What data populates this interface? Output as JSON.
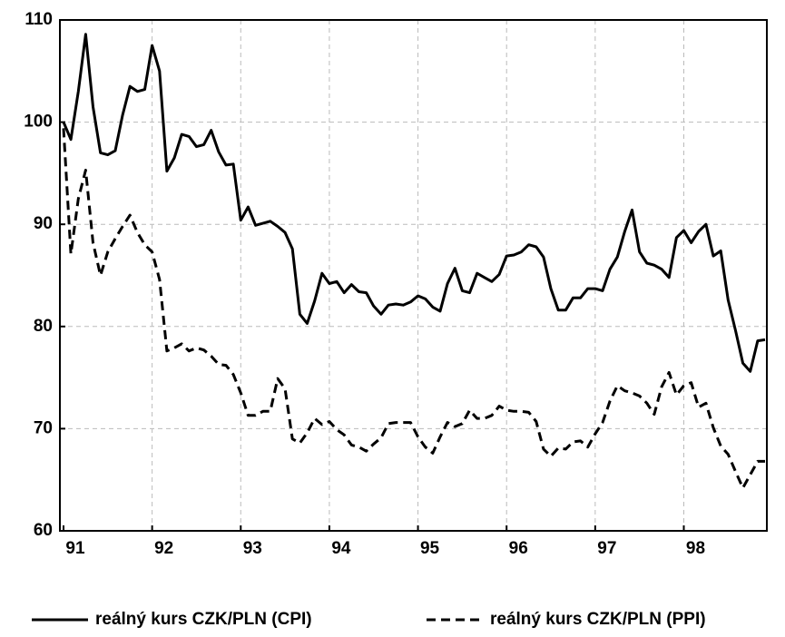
{
  "chart_data": {
    "type": "line",
    "categories": [
      "91",
      null,
      null,
      null,
      null,
      null,
      null,
      null,
      null,
      null,
      null,
      null,
      "92",
      null,
      null,
      null,
      null,
      null,
      null,
      null,
      null,
      null,
      null,
      null,
      "93",
      null,
      null,
      null,
      null,
      null,
      null,
      null,
      null,
      null,
      null,
      null,
      "94",
      null,
      null,
      null,
      null,
      null,
      null,
      null,
      null,
      null,
      null,
      null,
      "95",
      null,
      null,
      null,
      null,
      null,
      null,
      null,
      null,
      null,
      null,
      null,
      "96",
      null,
      null,
      null,
      null,
      null,
      null,
      null,
      null,
      null,
      null,
      null,
      "97",
      null,
      null,
      null,
      null,
      null,
      null,
      null,
      null,
      null,
      null,
      null,
      "98",
      null,
      null,
      null,
      null,
      null,
      null,
      null,
      null,
      null,
      null,
      null
    ],
    "series": [
      {
        "name": "reálný kurs CZK/PLN (CPI)",
        "color": "#000000",
        "dash": false,
        "values": [
          100,
          98.3,
          103,
          108.6,
          101.5,
          97,
          96.8,
          97.2,
          100.7,
          103.5,
          103,
          103.2,
          107.5,
          105,
          95.2,
          96.5,
          98.8,
          98.6,
          97.6,
          97.8,
          99.2,
          97.1,
          95.8,
          95.9,
          90.4,
          91.7,
          89.9,
          90.1,
          90.3,
          89.8,
          89.2,
          87.6,
          81.2,
          80.3,
          82.5,
          85.2,
          84.2,
          84.4,
          83.3,
          84.1,
          83.4,
          83.3,
          82,
          81.2,
          82.1,
          82.2,
          82.1,
          82.4,
          83,
          82.7,
          81.9,
          81.5,
          84.2,
          85.7,
          83.5,
          83.3,
          85.2,
          84.8,
          84.4,
          85.1,
          86.9,
          87,
          87.3,
          88,
          87.8,
          86.8,
          83.7,
          81.6,
          81.6,
          82.8,
          82.8,
          83.7,
          83.7,
          83.5,
          85.6,
          86.8,
          89.3,
          91.4,
          87.3,
          86.2,
          86,
          85.6,
          84.8,
          88.7,
          89.4,
          88.2,
          89.3,
          90,
          86.9,
          87.4,
          82.6,
          79.6,
          76.4,
          75.6,
          78.6,
          78.7
        ]
      },
      {
        "name": "reálný kurs CZK/PLN (PPI)",
        "color": "#000000",
        "dash": true,
        "values": [
          99.4,
          87.1,
          92.5,
          95.3,
          88.2,
          85,
          87.3,
          88.6,
          89.8,
          90.9,
          89.2,
          88,
          87.3,
          84.6,
          77.6,
          77.9,
          78.3,
          77.6,
          77.9,
          77.7,
          77.1,
          76.3,
          76.2,
          75.3,
          73.5,
          71.3,
          71.3,
          71.7,
          71.7,
          74.9,
          73.9,
          69,
          68.6,
          69.6,
          71,
          70.4,
          70.7,
          69.9,
          69.4,
          68.4,
          68.2,
          67.8,
          68.5,
          69.1,
          70.5,
          70.6,
          70.6,
          70.6,
          69.2,
          68.2,
          67.6,
          69.2,
          70.6,
          70.2,
          70.5,
          71.8,
          71,
          71,
          71.3,
          72.2,
          71.8,
          71.7,
          71.7,
          71.6,
          70.7,
          68,
          67.3,
          68.1,
          68,
          68.7,
          68.8,
          68.2,
          69.5,
          70.6,
          72.7,
          74.2,
          73.7,
          73.5,
          73.2,
          72.5,
          71.4,
          74.1,
          75.5,
          73.3,
          74.2,
          74.5,
          72.1,
          72.5,
          70.1,
          68.3,
          67.5,
          65.8,
          64.2,
          65.5,
          66.8,
          66.8
        ]
      }
    ],
    "ylim": [
      60,
      110
    ],
    "yticks": [
      60,
      70,
      80,
      90,
      100,
      110
    ],
    "grid": true,
    "legend": "bottom"
  }
}
